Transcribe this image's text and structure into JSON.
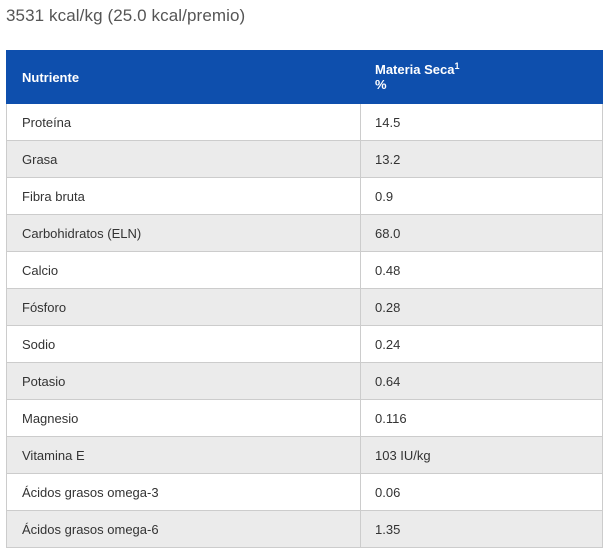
{
  "header": {
    "calories": "3531 kcal/kg (25.0 kcal/premio)"
  },
  "table": {
    "columns": {
      "nutrient": "Nutriente",
      "dry_matter": "Materia Seca",
      "dry_matter_footnote": "1",
      "dry_matter_unit": "%"
    },
    "rows": [
      {
        "name": "Proteína",
        "value": "14.5"
      },
      {
        "name": "Grasa",
        "value": "13.2"
      },
      {
        "name": "Fibra bruta",
        "value": "0.9"
      },
      {
        "name": "Carbohidratos (ELN)",
        "value": "68.0"
      },
      {
        "name": "Calcio",
        "value": "0.48"
      },
      {
        "name": "Fósforo",
        "value": "0.28"
      },
      {
        "name": "Sodio",
        "value": "0.24"
      },
      {
        "name": "Potasio",
        "value": "0.64"
      },
      {
        "name": "Magnesio",
        "value": "0.116"
      },
      {
        "name": "Vitamina E",
        "value": "103 IU/kg"
      },
      {
        "name": "Ácidos grasos omega-3",
        "value": "0.06"
      },
      {
        "name": "Ácidos grasos omega-6",
        "value": "1.35"
      }
    ]
  },
  "colors": {
    "header_bg": "#0e4fad",
    "header_text": "#ffffff",
    "row_alt_bg": "#ebebeb",
    "border": "#cccccc"
  }
}
